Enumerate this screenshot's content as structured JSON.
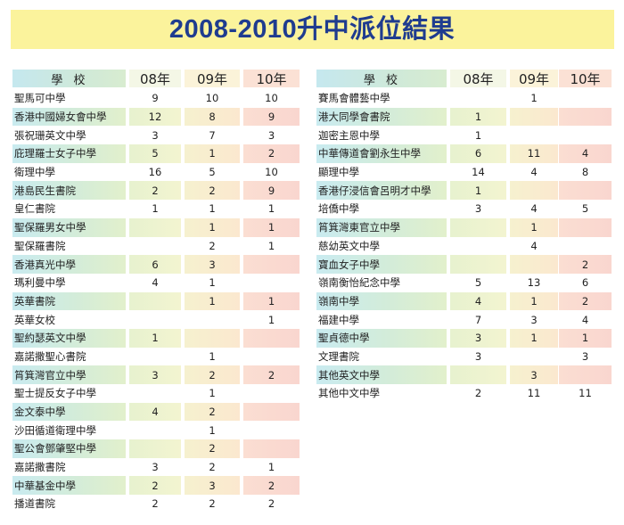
{
  "title": "2008-2010升中派位結果",
  "headers": {
    "school": "學 校",
    "y08": "08年",
    "y09": "09年",
    "y10": "10年"
  },
  "left_rows": [
    {
      "name": "聖馬可中學",
      "y08": "9",
      "y09": "10",
      "y10": "10",
      "shaded": false
    },
    {
      "name": "香港中國婦女會中學",
      "y08": "12",
      "y09": "8",
      "y10": "9",
      "shaded": true
    },
    {
      "name": "張祝珊英文中學",
      "y08": "3",
      "y09": "7",
      "y10": "3",
      "shaded": false
    },
    {
      "name": "庇理羅士女子中學",
      "y08": "5",
      "y09": "1",
      "y10": "2",
      "shaded": true
    },
    {
      "name": "衛理中學",
      "y08": "16",
      "y09": "5",
      "y10": "10",
      "shaded": false
    },
    {
      "name": "港島民生書院",
      "y08": "2",
      "y09": "2",
      "y10": "9",
      "shaded": true
    },
    {
      "name": "皇仁書院",
      "y08": "1",
      "y09": "1",
      "y10": "1",
      "shaded": false
    },
    {
      "name": "聖保羅男女中學",
      "y08": "",
      "y09": "1",
      "y10": "1",
      "shaded": true
    },
    {
      "name": "聖保羅書院",
      "y08": "",
      "y09": "2",
      "y10": "1",
      "shaded": false
    },
    {
      "name": "香港真光中學",
      "y08": "6",
      "y09": "3",
      "y10": "",
      "shaded": true
    },
    {
      "name": "瑪利曼中學",
      "y08": "4",
      "y09": "1",
      "y10": "",
      "shaded": false
    },
    {
      "name": "英華書院",
      "y08": "",
      "y09": "1",
      "y10": "1",
      "shaded": true
    },
    {
      "name": "英華女校",
      "y08": "",
      "y09": "",
      "y10": "1",
      "shaded": false
    },
    {
      "name": "聖約瑟英文中學",
      "y08": "1",
      "y09": "",
      "y10": "",
      "shaded": true
    },
    {
      "name": "嘉諾撒聖心書院",
      "y08": "",
      "y09": "1",
      "y10": "",
      "shaded": false
    },
    {
      "name": "筲箕灣官立中學",
      "y08": "3",
      "y09": "2",
      "y10": "2",
      "shaded": true
    },
    {
      "name": "聖士提反女子中學",
      "y08": "",
      "y09": "1",
      "y10": "",
      "shaded": false
    },
    {
      "name": "金文泰中學",
      "y08": "4",
      "y09": "2",
      "y10": "",
      "shaded": true
    },
    {
      "name": "沙田循道衛理中學",
      "y08": "",
      "y09": "1",
      "y10": "",
      "shaded": false
    },
    {
      "name": "聖公會鄧肇堅中學",
      "y08": "",
      "y09": "2",
      "y10": "",
      "shaded": true
    },
    {
      "name": "嘉諾撒書院",
      "y08": "3",
      "y09": "2",
      "y10": "1",
      "shaded": false
    },
    {
      "name": "中華基金中學",
      "y08": "2",
      "y09": "3",
      "y10": "2",
      "shaded": true
    },
    {
      "name": "播道書院",
      "y08": "2",
      "y09": "2",
      "y10": "2",
      "shaded": false
    }
  ],
  "right_rows": [
    {
      "name": "賽馬會體藝中學",
      "y08": "",
      "y09": "1",
      "y10": "",
      "shaded": false
    },
    {
      "name": "港大同學會書院",
      "y08": "1",
      "y09": "",
      "y10": "",
      "shaded": true
    },
    {
      "name": "迦密主恩中學",
      "y08": "1",
      "y09": "",
      "y10": "",
      "shaded": false
    },
    {
      "name": "中華傳道會劉永生中學",
      "y08": "6",
      "y09": "11",
      "y10": "4",
      "shaded": true
    },
    {
      "name": "顯理中學",
      "y08": "14",
      "y09": "4",
      "y10": "8",
      "shaded": false
    },
    {
      "name": "香港仔浸信會呂明才中學",
      "y08": "1",
      "y09": "",
      "y10": "",
      "shaded": true
    },
    {
      "name": "培僑中學",
      "y08": "3",
      "y09": "4",
      "y10": "5",
      "shaded": false
    },
    {
      "name": "筲箕灣東官立中學",
      "y08": "",
      "y09": "1",
      "y10": "",
      "shaded": true
    },
    {
      "name": "慈幼英文中學",
      "y08": "",
      "y09": "4",
      "y10": "",
      "shaded": false
    },
    {
      "name": "寶血女子中學",
      "y08": "",
      "y09": "",
      "y10": "2",
      "shaded": true
    },
    {
      "name": "嶺南衡怡紀念中學",
      "y08": "5",
      "y09": "13",
      "y10": "6",
      "shaded": false
    },
    {
      "name": "嶺南中學",
      "y08": "4",
      "y09": "1",
      "y10": "2",
      "shaded": true
    },
    {
      "name": "福建中學",
      "y08": "7",
      "y09": "3",
      "y10": "4",
      "shaded": false
    },
    {
      "name": "聖貞德中學",
      "y08": "3",
      "y09": "1",
      "y10": "1",
      "shaded": true
    },
    {
      "name": "文理書院",
      "y08": "3",
      "y09": "",
      "y10": "3",
      "shaded": false
    },
    {
      "name": "其他英文中學",
      "y08": "",
      "y09": "3",
      "y10": "",
      "shaded": true
    },
    {
      "name": "其他中文中學",
      "y08": "2",
      "y09": "11",
      "y10": "11",
      "shaded": false
    }
  ]
}
